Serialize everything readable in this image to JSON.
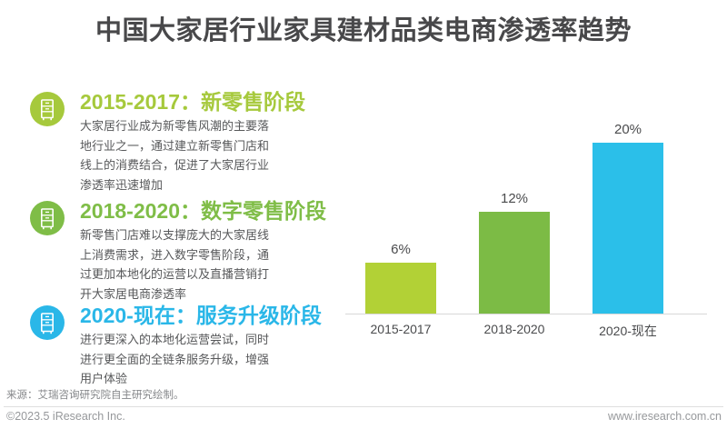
{
  "title": "中国大家居行业家具建材品类电商渗透率趋势",
  "sections": [
    {
      "heading": "2015-2017：新零售阶段",
      "body": "大家居行业成为新零售风潮的主要落\n地行业之一，通过建立新零售门店和\n线上的消费结合，促进了大家居行业\n渗透率迅速增加",
      "color": "#a6c93c",
      "icon": "cabinet-icon"
    },
    {
      "heading": "2018-2020：数字零售阶段",
      "body": "新零售门店难以支撑庞大的大家居线\n上消费需求，进入数字零售阶段，通\n过更加本地化的运营以及直播营销打\n开大家居电商渗透率",
      "color": "#7fbd47",
      "icon": "cabinet-icon"
    },
    {
      "heading": "2020-现在：服务升级阶段",
      "body": "进行更深入的本地化运营尝试，同时\n进行更全面的全链条服务升级，增强\n用户体验",
      "color": "#2ab7e8",
      "icon": "cabinet-icon"
    }
  ],
  "chart_data": {
    "type": "bar",
    "title": "中国大家居行业家具建材品类电商渗透率趋势",
    "categories": [
      "2015-2017",
      "2018-2020",
      "2020-现在"
    ],
    "values": [
      6,
      12,
      20
    ],
    "value_labels": [
      "6%",
      "12%",
      "20%"
    ],
    "bar_colors": [
      "#b2d136",
      "#7cbb45",
      "#2bbfe9"
    ],
    "unit": "%",
    "xlabel": "",
    "ylabel": "",
    "ylim": [
      0,
      22
    ],
    "grid": false,
    "legend": false
  },
  "footer": {
    "source": "来源：艾瑞咨询研究院自主研究绘制。",
    "copyright": "©2023.5 iResearch Inc.",
    "website": "www.iresearch.com.cn"
  },
  "colors": {
    "background": "#ffffff",
    "title_text": "#48484a",
    "body_text": "#57585a",
    "label_text": "#4a4b4d",
    "axis_line": "#d8d8d8",
    "source_text": "#85878a",
    "footer_text": "#96989b"
  }
}
